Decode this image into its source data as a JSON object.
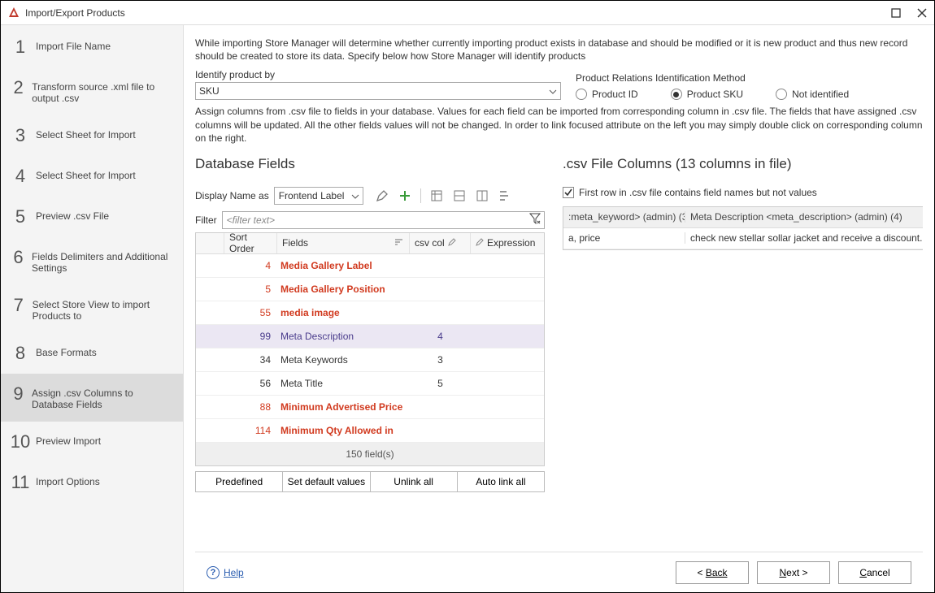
{
  "window": {
    "title": "Import/Export Products"
  },
  "steps": [
    {
      "num": "1",
      "label": "Import File Name"
    },
    {
      "num": "2",
      "label": "Transform source .xml file to output .csv"
    },
    {
      "num": "3",
      "label": "Select Sheet for Import"
    },
    {
      "num": "4",
      "label": "Select Sheet for Import"
    },
    {
      "num": "5",
      "label": "Preview .csv File"
    },
    {
      "num": "6",
      "label": "Fields Delimiters and Additional Settings"
    },
    {
      "num": "7",
      "label": "Select Store View to import Products to"
    },
    {
      "num": "8",
      "label": "Base Formats"
    },
    {
      "num": "9",
      "label": "Assign .csv Columns to Database Fields"
    },
    {
      "num": "10",
      "label": "Preview Import"
    },
    {
      "num": "11",
      "label": "Import Options"
    }
  ],
  "active_step_index": 8,
  "intro": "While importing Store Manager will determine whether currently importing product exists in database and should be modified or it is new product and thus new record should be created to store its data. Specify below how Store Manager will identify products",
  "identify": {
    "label": "Identify product by",
    "value": "SKU",
    "relations_label": "Product Relations Identification Method",
    "options": [
      {
        "label": "Product ID",
        "checked": false
      },
      {
        "label": "Product SKU",
        "checked": true
      },
      {
        "label": "Not identified",
        "checked": false
      }
    ]
  },
  "assign_text": "Assign columns from .csv file to fields in your database. Values for each field can be imported from corresponding column in .csv file. The fields that have assigned .csv columns will be updated. All the other fields values will not be changed. In order to link focused attribute on the left you may simply double click on corresponding column on the right.",
  "left_panel": {
    "title": "Database Fields",
    "display_name_label": "Display Name as",
    "display_name_value": "Frontend Label",
    "filter_label": "Filter",
    "filter_placeholder": "<filter text>",
    "headers": {
      "sort": "Sort Order",
      "fields": "Fields",
      "csv": "csv col",
      "expr": "Expression"
    },
    "rows": [
      {
        "sort": "4",
        "field": "Media Gallery Label",
        "csv": "",
        "red": true
      },
      {
        "sort": "5",
        "field": "Media Gallery Position",
        "csv": "",
        "red": true
      },
      {
        "sort": "55",
        "field": "media image",
        "csv": "",
        "red": true
      },
      {
        "sort": "99",
        "field": "Meta Description",
        "csv": "4",
        "red": false,
        "selected": true
      },
      {
        "sort": "34",
        "field": "Meta Keywords",
        "csv": "3",
        "red": false
      },
      {
        "sort": "56",
        "field": "Meta Title",
        "csv": "5",
        "red": false
      },
      {
        "sort": "88",
        "field": "Minimum Advertised Price",
        "csv": "",
        "red": true
      },
      {
        "sort": "114",
        "field": "Minimum Qty Allowed in",
        "csv": "",
        "red": true
      }
    ],
    "footer": "150 field(s)",
    "buttons": [
      "Predefined",
      "Set default values",
      "Unlink all",
      "Auto link all"
    ]
  },
  "right_panel": {
    "title": ".csv File Columns (13 columns in file)",
    "first_row_label": "First row in .csv file contains field names but not values",
    "first_row_checked": true,
    "header_col1": ":meta_keyword> (admin) (3)",
    "header_col2": "Meta Description <meta_description> (admin) (4)",
    "row_col1": "a, price",
    "row_col2": "check new stellar sollar jacket and receive a discount..."
  },
  "footer": {
    "help": "Help",
    "back": "Back",
    "next": "Next >",
    "cancel": "Cancel"
  },
  "colors": {
    "red_text": "#d13a1f",
    "selected_bg": "#ebe7f3",
    "selected_text": "#4a3c8c",
    "sidebar_bg": "#f4f4f4",
    "active_step_bg": "#dcdcdc",
    "link": "#2a5db0"
  }
}
